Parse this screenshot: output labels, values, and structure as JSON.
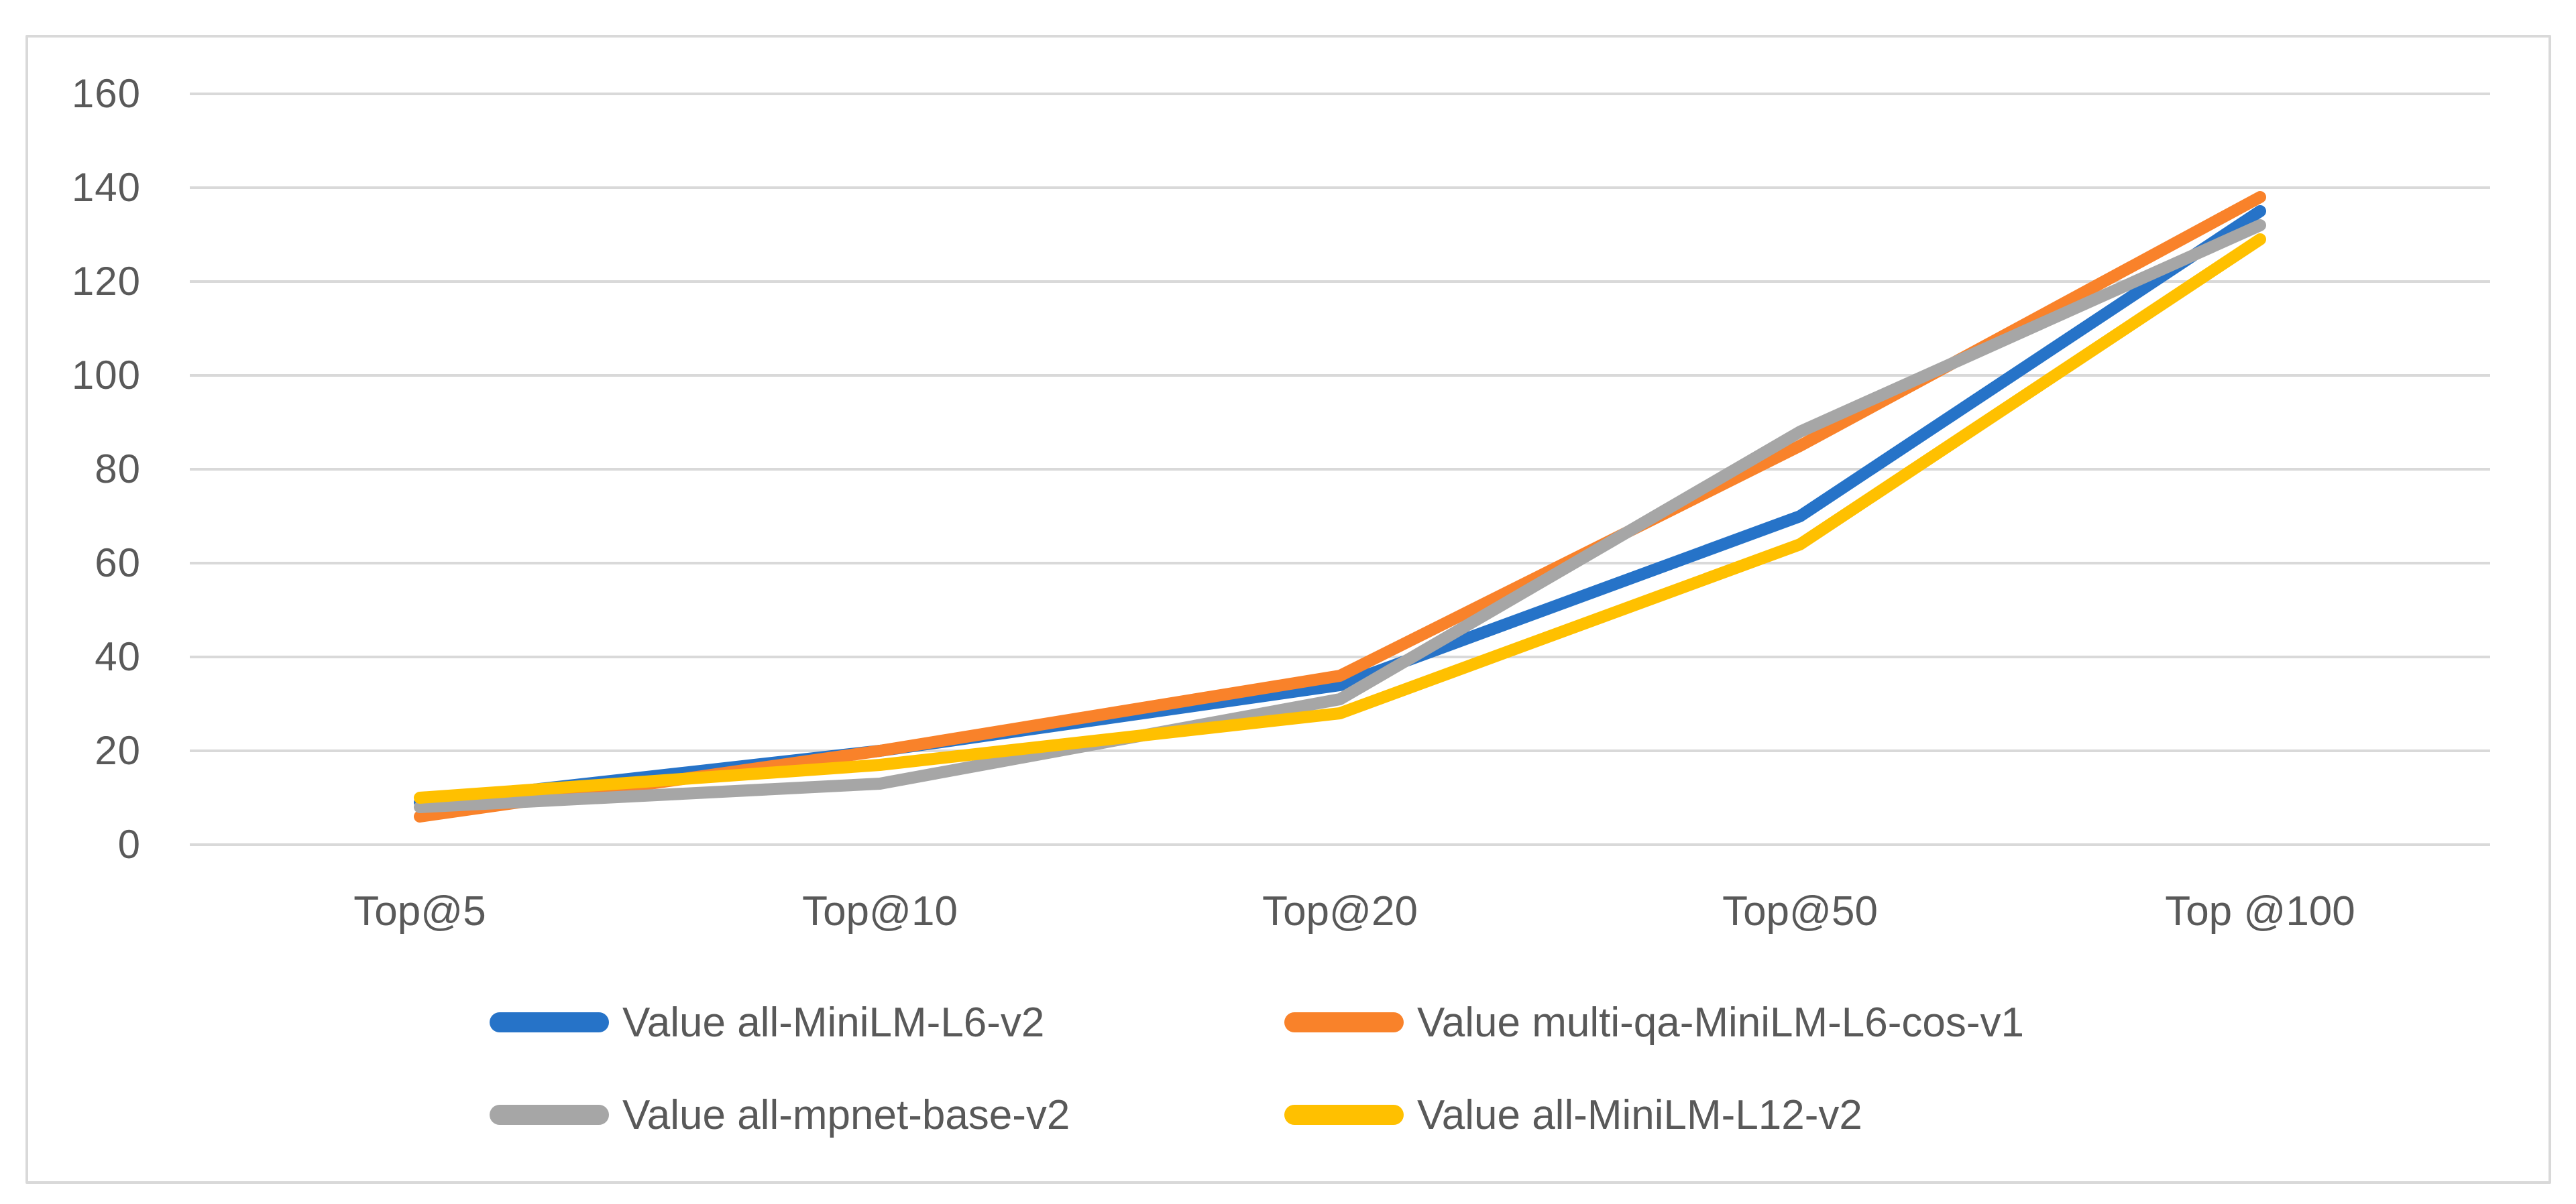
{
  "chart_data": {
    "type": "line",
    "title": "",
    "categories": [
      "Top@5",
      "Top@10",
      "Top@20",
      "Top@50",
      "Top @100"
    ],
    "series": [
      {
        "name": "Value all-MiniLM-L6-v2",
        "color": "#2673C8",
        "values": [
          9,
          20,
          34,
          70,
          135
        ]
      },
      {
        "name": "Value multi-qa-MiniLM-L6-cos-v1",
        "color": "#F9822A",
        "values": [
          6,
          20,
          36,
          85,
          138
        ]
      },
      {
        "name": "Value all-mpnet-base-v2",
        "color": "#A6A6A6",
        "values": [
          8,
          13,
          31,
          88,
          132
        ]
      },
      {
        "name": "Value all-MiniLM-L12-v2",
        "color": "#FFC000",
        "values": [
          10,
          17,
          28,
          64,
          129
        ]
      }
    ],
    "y_ticks": [
      0,
      20,
      40,
      60,
      80,
      100,
      120,
      140,
      160
    ],
    "ylim": [
      0,
      160
    ],
    "xlabel": "",
    "ylabel": "",
    "grid": "horizontal",
    "legend_position": "bottom",
    "legend_columns": 2,
    "line_width": 18
  },
  "styles": {
    "background": "#FFFFFF",
    "grid_color": "#D9D9D9",
    "frame_color": "#D9D9D9",
    "text_color": "#595959"
  }
}
